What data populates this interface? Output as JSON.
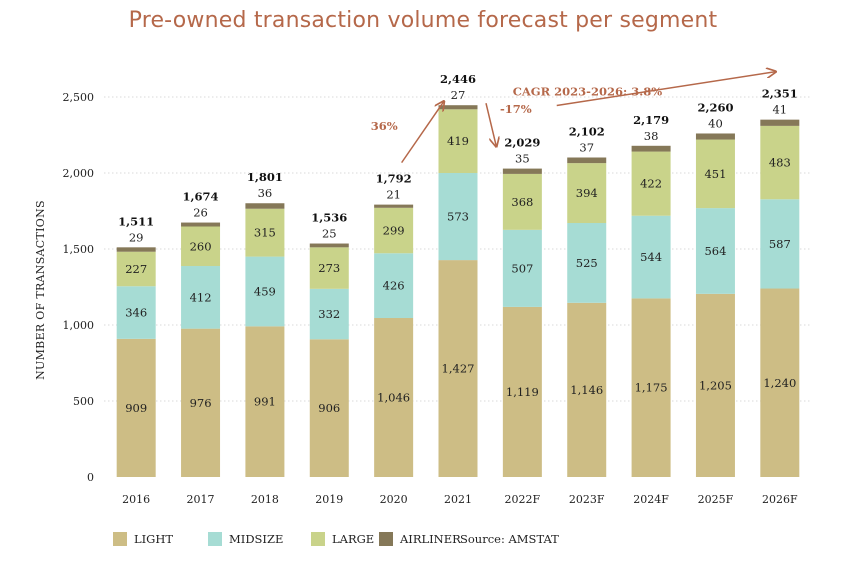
{
  "title": "Pre-owned transaction volume forecast per segment",
  "source": "Source: AMSTAT",
  "colors": {
    "light": "#cdbd85",
    "midsize": "#a6dcd4",
    "large": "#c9d38a",
    "airliner": "#857858",
    "accent": "#b5684a"
  },
  "chart_data": {
    "type": "bar",
    "stacked": true,
    "title": "Pre-owned transaction volume forecast per segment",
    "ylabel": "NUMBER OF TRANSACTIONS",
    "xlabel": "",
    "ylim": [
      0,
      2500
    ],
    "yticks": [
      0,
      500,
      1000,
      1500,
      2000,
      2500
    ],
    "ytick_labels": [
      "0",
      "500",
      "1,000",
      "1,500",
      "2,000",
      "2,500"
    ],
    "grid": true,
    "legend_position": "bottom",
    "categories": [
      "2016",
      "2017",
      "2018",
      "2019",
      "2020",
      "2021",
      "2022F",
      "2023F",
      "2024F",
      "2025F",
      "2026F"
    ],
    "series": [
      {
        "name": "LIGHT",
        "color_key": "light",
        "values": [
          909,
          976,
          991,
          906,
          1046,
          1427,
          1119,
          1146,
          1175,
          1205,
          1240
        ],
        "labels": [
          "909",
          "976",
          "991",
          "906",
          "1,046",
          "1,427",
          "1,119",
          "1,146",
          "1,175",
          "1,205",
          "1,240"
        ]
      },
      {
        "name": "MIDSIZE",
        "color_key": "midsize",
        "values": [
          346,
          412,
          459,
          332,
          426,
          573,
          507,
          525,
          544,
          564,
          587
        ],
        "labels": [
          "346",
          "412",
          "459",
          "332",
          "426",
          "573",
          "507",
          "525",
          "544",
          "564",
          "587"
        ]
      },
      {
        "name": "LARGE",
        "color_key": "large",
        "values": [
          227,
          260,
          315,
          273,
          299,
          419,
          368,
          394,
          422,
          451,
          483
        ],
        "labels": [
          "227",
          "260",
          "315",
          "273",
          "299",
          "419",
          "368",
          "394",
          "422",
          "451",
          "483"
        ]
      },
      {
        "name": "AIRLINER",
        "color_key": "airliner",
        "values": [
          29,
          26,
          36,
          25,
          21,
          27,
          35,
          37,
          38,
          40,
          41
        ],
        "labels": [
          "29",
          "26",
          "36",
          "25",
          "21",
          "27",
          "35",
          "37",
          "38",
          "40",
          "41"
        ]
      }
    ],
    "totals": [
      1511,
      1674,
      1801,
      1536,
      1792,
      2446,
      2029,
      2102,
      2179,
      2260,
      2351
    ],
    "total_labels": [
      "1,511",
      "1,674",
      "1,801",
      "1,536",
      "1,792",
      "2,446",
      "2,029",
      "2,102",
      "2,179",
      "2,260",
      "2,351"
    ],
    "annotations": [
      {
        "text": "36%",
        "from_category": "2020",
        "to_category": "2021"
      },
      {
        "text": "-17%",
        "from_category": "2021",
        "to_category": "2022F"
      },
      {
        "text": "CAGR 2023-2026: 3.8%",
        "from_category": "2023F",
        "to_category": "2026F"
      }
    ]
  }
}
